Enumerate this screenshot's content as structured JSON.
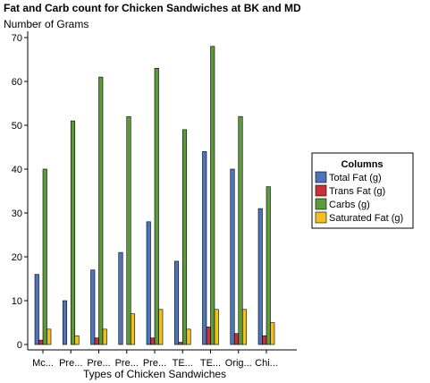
{
  "chart_data": {
    "type": "bar",
    "title": "Fat and Carb count for Chicken Sandwiches at BK and MD",
    "ylabel": "Number of Grams",
    "xlabel": "Types of Chicken Sandwiches",
    "categories": [
      "Mc...",
      "Pre...",
      "Pre...",
      "Pre...",
      "Pre...",
      "TE...",
      "TE...",
      "Orig...",
      "Chi..."
    ],
    "ylim": [
      0,
      70
    ],
    "yticks": [
      0,
      10,
      20,
      30,
      40,
      50,
      60,
      70
    ],
    "grid": false,
    "legend": {
      "title": "Columns",
      "position": "right"
    },
    "series": [
      {
        "name": "Total Fat (g)",
        "color": "#4f74b8",
        "values": [
          16,
          10,
          17,
          21,
          28,
          19,
          44,
          40,
          31
        ]
      },
      {
        "name": "Trans Fat (g)",
        "color": "#c8303a",
        "values": [
          1,
          0,
          1.5,
          0,
          1.5,
          0.5,
          4,
          2.5,
          2
        ]
      },
      {
        "name": "Carbs (g)",
        "color": "#5c9a3c",
        "values": [
          40,
          51,
          61,
          52,
          63,
          49,
          68,
          52,
          36
        ]
      },
      {
        "name": "Saturated Fat (g)",
        "color": "#f0c020",
        "values": [
          3.5,
          2,
          3.5,
          7,
          8,
          3.5,
          8,
          8,
          5
        ]
      }
    ]
  }
}
